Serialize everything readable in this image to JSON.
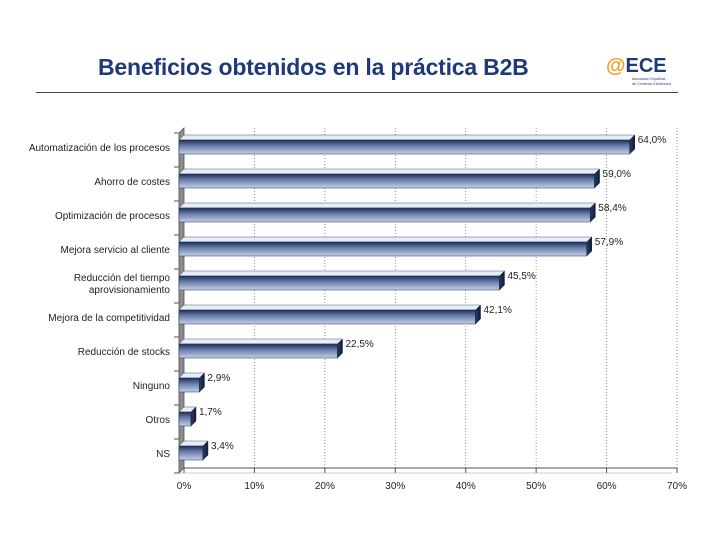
{
  "header": {
    "title": "Beneficios obtenidos en la práctica B2B",
    "logo_text": "@ECE",
    "logo_sub1": "Asociación Española",
    "logo_sub2": "de Comercio Electrónico"
  },
  "colors": {
    "title": "#1f3a7a",
    "bar_dark": "#1d2f5c",
    "bar_light": "#b8c6e0",
    "logo_orange": "#f0a020",
    "logo_blue": "#1f3a7a"
  },
  "chart_data": {
    "type": "bar",
    "orientation": "horizontal",
    "title": "Beneficios obtenidos en la práctica B2B",
    "categories": [
      "Automatización de los procesos",
      "Ahorro de costes",
      "Optimización de procesos",
      "Mejora servicio al cliente",
      "Reducción del tiempo aprovisionamiento",
      "Mejora de la competitividad",
      "Reducción de stocks",
      "Ninguno",
      "Otros",
      "NS"
    ],
    "category_lines": [
      [
        "Automatización de los procesos"
      ],
      [
        "Ahorro de costes"
      ],
      [
        "Optimización de procesos"
      ],
      [
        "Mejora servicio al cliente"
      ],
      [
        "Reducción del tiempo",
        "aprovisionamiento"
      ],
      [
        "Mejora de la competitividad"
      ],
      [
        "Reducción de stocks"
      ],
      [
        "Ninguno"
      ],
      [
        "Otros"
      ],
      [
        "NS"
      ]
    ],
    "values": [
      64.0,
      59.0,
      58.4,
      57.9,
      45.5,
      42.1,
      22.5,
      2.9,
      1.7,
      3.4
    ],
    "value_labels": [
      "64,0%",
      "59,0%",
      "58,4%",
      "57,9%",
      "45,5%",
      "42,1%",
      "22,5%",
      "2,9%",
      "1,7%",
      "3,4%"
    ],
    "xlim": [
      0,
      70
    ],
    "ticks": [
      0,
      10,
      20,
      30,
      40,
      50,
      60,
      70
    ],
    "tick_labels": [
      "0%",
      "10%",
      "20%",
      "30%",
      "40%",
      "50%",
      "60%",
      "70%"
    ],
    "xlabel": "",
    "ylabel": "",
    "grid": true
  }
}
